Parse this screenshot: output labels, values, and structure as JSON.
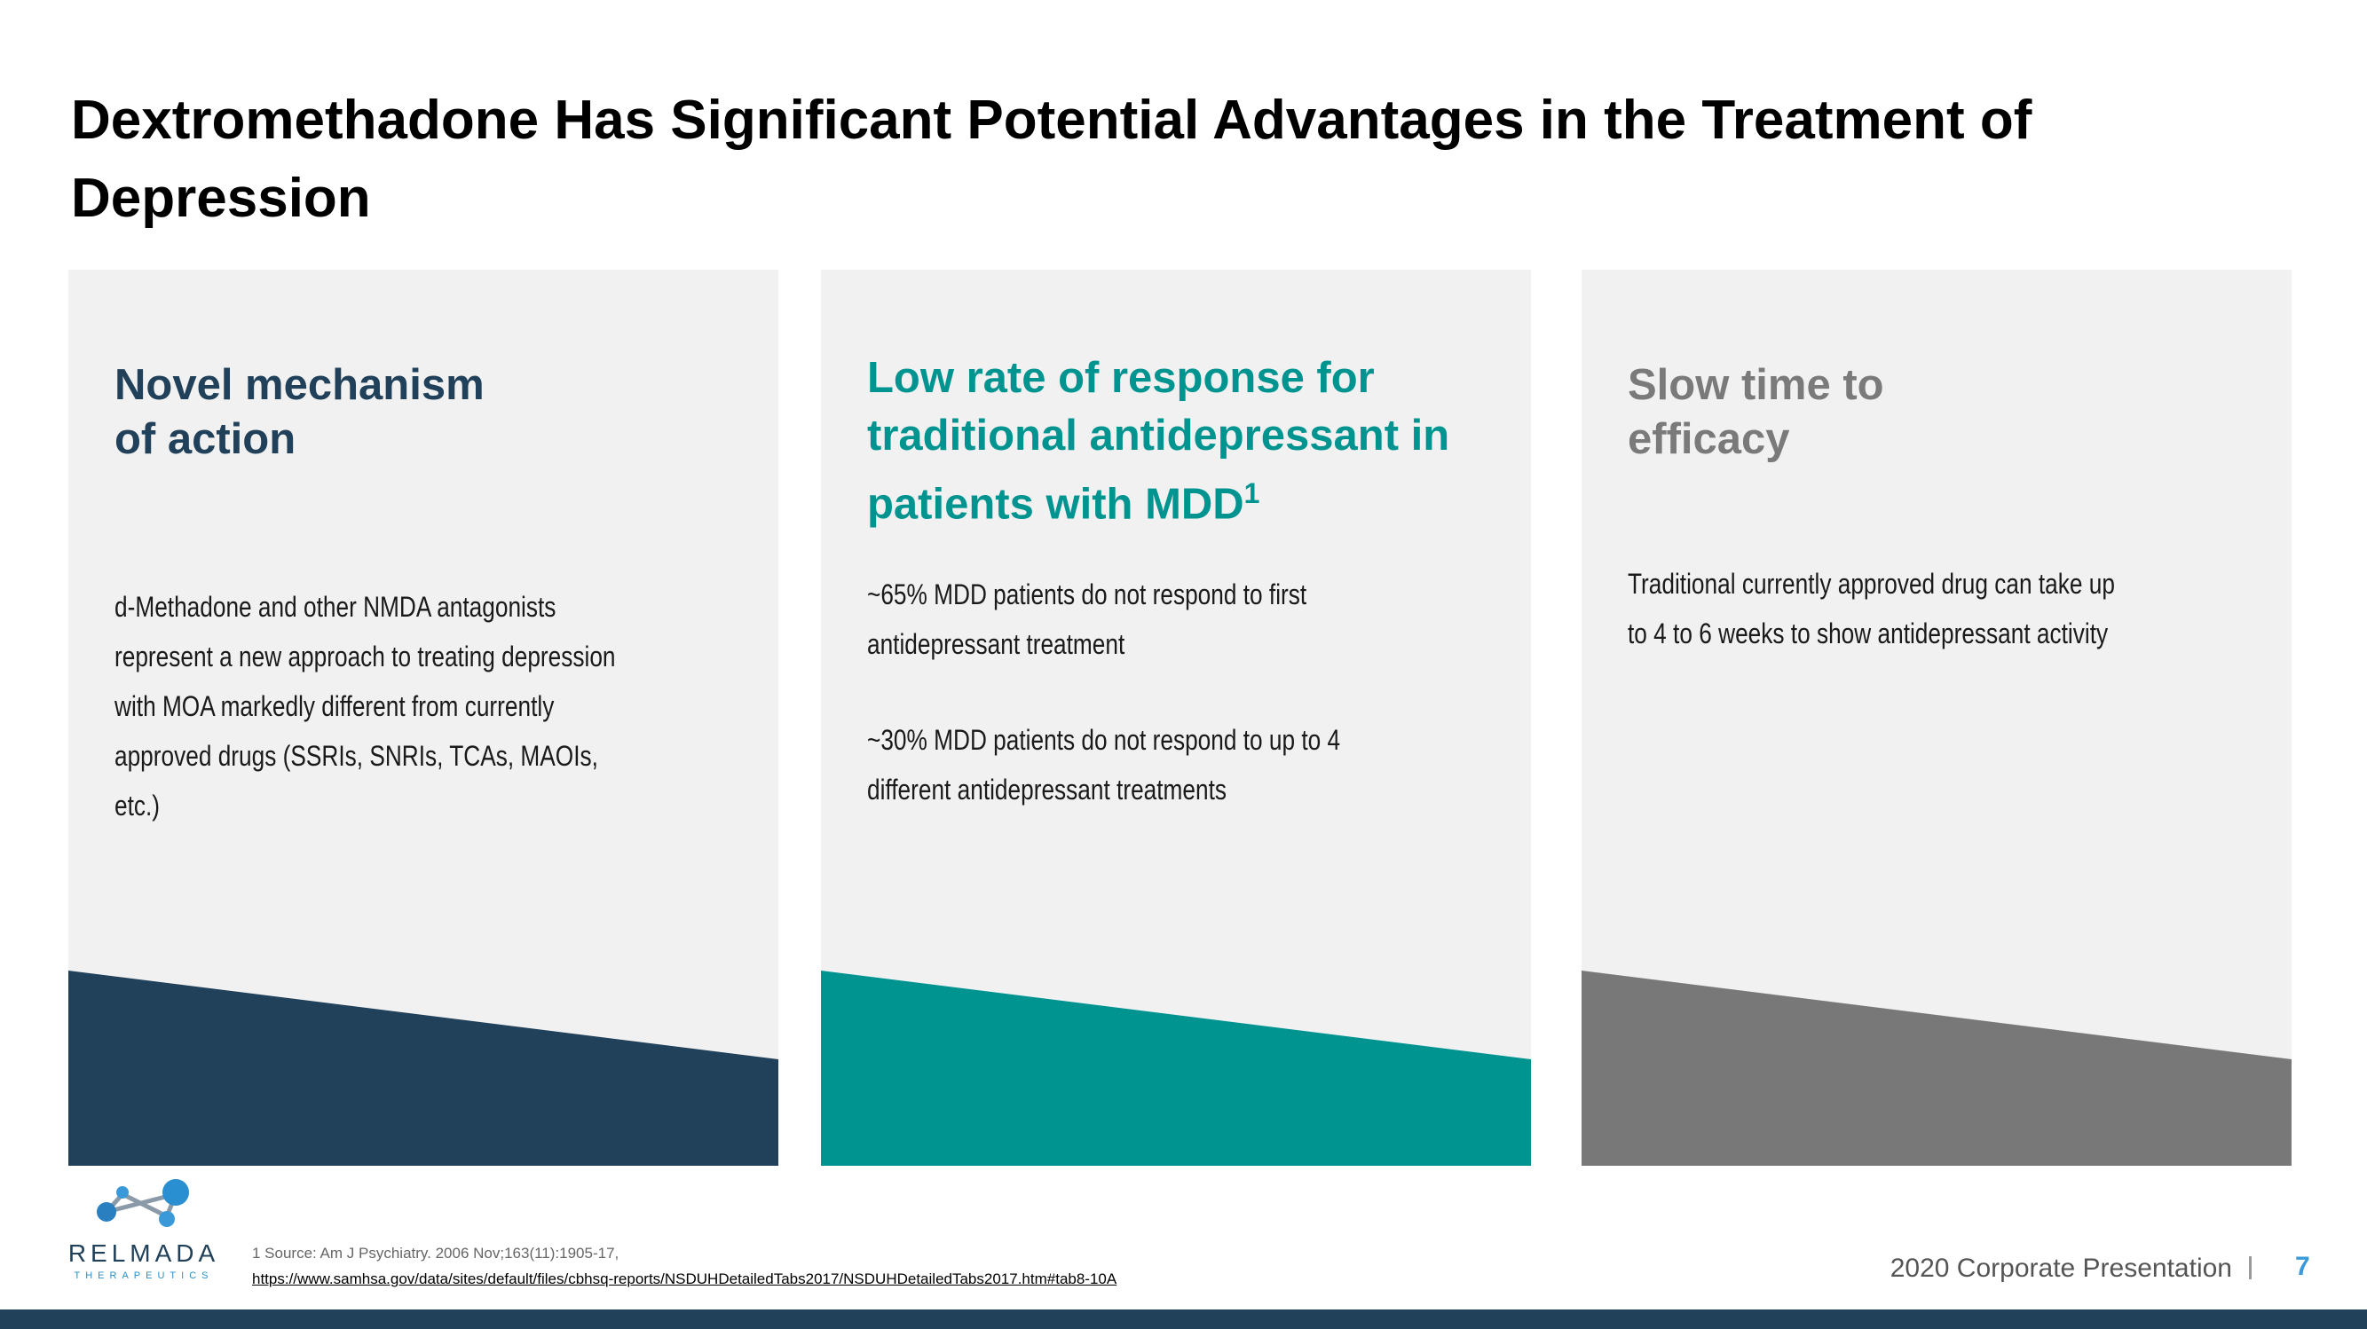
{
  "slide": {
    "title": "Dextromethadone Has Significant Potential Advantages in the Treatment of Depression"
  },
  "cards": [
    {
      "heading": "Novel mechanism of action",
      "heading_color": "#21415a",
      "accent_color": "#21415a",
      "paragraphs": [
        "d-Methadone and other NMDA antagonists represent a new approach to treating depression with MOA markedly different from currently approved drugs (SSRIs, SNRIs, TCAs, MAOIs, etc.)"
      ]
    },
    {
      "heading": "Low rate of response for traditional antidepressant in patients with MDD",
      "heading_sup": "1",
      "heading_color": "#009490",
      "accent_color": "#009490",
      "paragraphs": [
        "~65% MDD patients do not respond to first antidepressant treatment",
        "~30% MDD patients do not respond to up to 4 different antidepressant treatments"
      ]
    },
    {
      "heading": "Slow time to efficacy",
      "heading_color": "#7a7a7a",
      "accent_color": "#787878",
      "paragraphs": [
        "Traditional currently approved drug can take up to 4 to 6 weeks to show antidepressant activity"
      ]
    }
  ],
  "footer": {
    "logo_name": "RELMADA",
    "logo_sub": "THERAPEUTICS",
    "source_note": "1 Source: Am J Psychiatry. 2006 Nov;163(11):1905-17,",
    "source_link": "https://www.samhsa.gov/data/sites/default/files/cbhsq-reports/NSDUHDetailedTabs2017/NSDUHDetailedTabs2017.htm#tab8-10A",
    "presentation_label": "2020 Corporate Presentation",
    "page_number": "7",
    "bar_color": "#21415a"
  }
}
